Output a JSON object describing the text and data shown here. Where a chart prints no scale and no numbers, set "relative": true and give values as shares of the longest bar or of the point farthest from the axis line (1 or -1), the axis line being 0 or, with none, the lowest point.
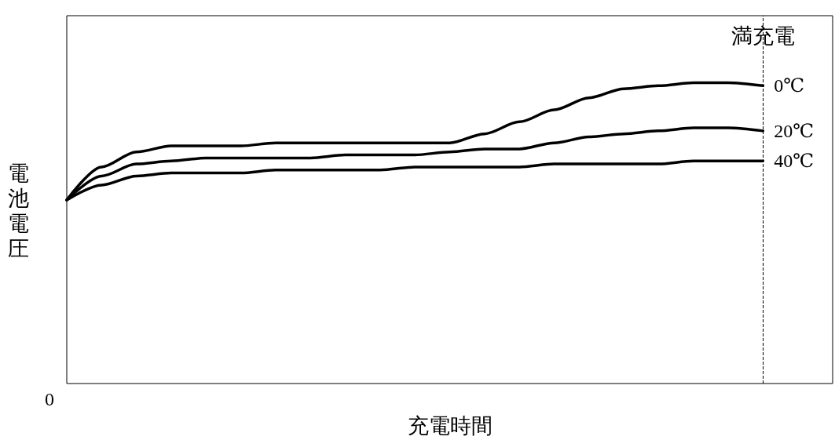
{
  "chart_data": {
    "type": "line",
    "relative": true,
    "xlabel": "充電時間",
    "ylabel": "電池電圧",
    "annotations": [
      "0"
    ],
    "categories": [
      null,
      null,
      null,
      null,
      null,
      null,
      null,
      null,
      null,
      null,
      null,
      null,
      null,
      null,
      null,
      null,
      null,
      null,
      null,
      null,
      null,
      null,
      null
    ],
    "series": [
      {
        "name": "0℃",
        "color": "#000000",
        "values": [
          0.61,
          0.72,
          0.77,
          0.79,
          0.79,
          0.79,
          0.8,
          0.8,
          0.8,
          0.8,
          0.8,
          0.8,
          0.83,
          0.87,
          0.91,
          0.95,
          0.98,
          0.99,
          1,
          1,
          0.99,
          null,
          null
        ]
      },
      {
        "name": "20℃",
        "color": "#000000",
        "values": [
          0.61,
          0.69,
          0.73,
          0.74,
          0.75,
          0.75,
          0.75,
          0.75,
          0.76,
          0.76,
          0.76,
          0.77,
          0.78,
          0.78,
          0.8,
          0.82,
          0.83,
          0.84,
          0.85,
          0.85,
          0.84,
          null,
          null
        ]
      },
      {
        "name": "40℃",
        "color": "#000000",
        "values": [
          0.61,
          0.66,
          0.69,
          0.7,
          0.7,
          0.7,
          0.71,
          0.71,
          0.71,
          0.71,
          0.72,
          0.72,
          0.72,
          0.72,
          0.73,
          0.73,
          0.73,
          0.73,
          0.74,
          0.74,
          0.74,
          null,
          null
        ]
      }
    ],
    "ref_lines": [
      {
        "axis": "x",
        "label": "満充電",
        "line_style": "dashed",
        "color": "#000000"
      }
    ],
    "legend": false,
    "grid": false,
    "marker": "none",
    "line_style": "solid"
  }
}
